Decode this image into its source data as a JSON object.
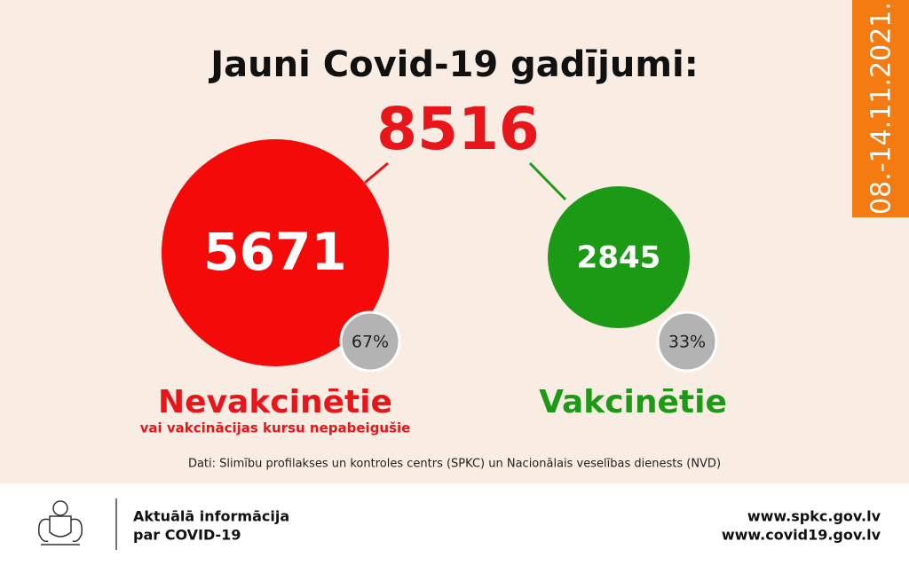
{
  "header": {
    "title": "Jauni Covid-19 gadījumi:",
    "total": "8516",
    "period": "08.-14.11.2021."
  },
  "groups": [
    {
      "value": "5671",
      "share": "67%",
      "label": "Nevakcinētie",
      "sublabel": "vai vakcinācijas kursu nepabeigušie"
    },
    {
      "value": "2845",
      "share": "33%",
      "label": "Vakcinētie"
    }
  ],
  "source": "Dati: Slimību profilakses un kontroles centrs (SPKC) un Nacionālais veselības dienests (NVD)",
  "footer": {
    "info": [
      "Aktuālā informācija",
      "par COVID-19"
    ],
    "links": [
      "www.spkc.gov.lv",
      "www.covid19.gov.lv"
    ]
  }
}
